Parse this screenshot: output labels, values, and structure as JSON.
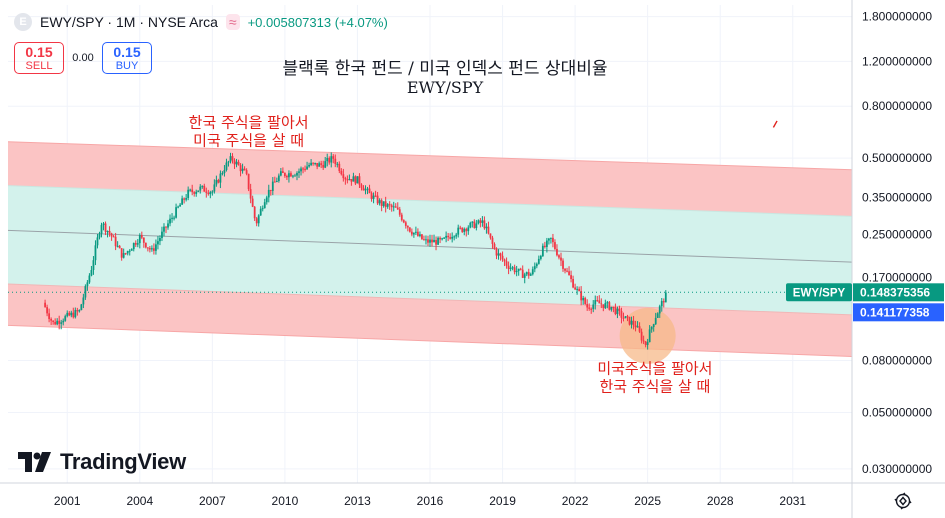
{
  "header": {
    "logo_letter": "E",
    "symbol": "EWY/SPY · 1M · NYSE Arca",
    "change_icon": "≈",
    "change": "+0.005807313 (+4.07%)"
  },
  "trade": {
    "sell_price": "0.15",
    "sell_label": "SELL",
    "spread": "0.00",
    "buy_price": "0.15",
    "buy_label": "BUY"
  },
  "brand": {
    "name": "TradingView",
    "icon": "tradingview-logo-icon"
  },
  "colors": {
    "up": "#089981",
    "down": "#f23645",
    "channel_red": "#fbc4c4",
    "channel_teal": "#d3f2ec",
    "annotation": "#e0201b",
    "highlight": "#f7b98a"
  },
  "chart_data": {
    "type": "candlestick",
    "title_line1": "블랙록 한국 펀드 / 미국 인덱스 펀드 상대비율",
    "title_line2": "EWY/SPY",
    "annotations": [
      {
        "line1": "한국 주식을 팔아서",
        "line2": "미국 주식을 살 때",
        "x": 2008.5,
        "y": 0.66
      },
      {
        "line1": "미국주식을 팔아서",
        "line2": "한국 주식을 살 때",
        "x": 2025.3,
        "y": 0.071
      }
    ],
    "x_ticks": [
      "2001",
      "2004",
      "2007",
      "2010",
      "2013",
      "2016",
      "2019",
      "2022",
      "2025",
      "2028",
      "2031"
    ],
    "x_tick_values": [
      2001,
      2004,
      2007,
      2010,
      2013,
      2016,
      2019,
      2022,
      2025,
      2028,
      2031
    ],
    "xlim": [
      1998.55,
      2033.45
    ],
    "y_scale": "log",
    "ylim": [
      0.0264,
      2.0
    ],
    "y_ticks": [
      "1.800000000",
      "1.200000000",
      "0.800000000",
      "0.500000000",
      "0.350000000",
      "0.250000000",
      "0.170000000",
      "0.080000000",
      "0.050000000",
      "0.030000000"
    ],
    "y_tick_values": [
      1.8,
      1.2,
      0.8,
      0.5,
      0.35,
      0.25,
      0.17,
      0.08,
      0.05,
      0.03
    ],
    "last_price_label": "EWY/SPY",
    "last_price": "0.148375356",
    "second_price": "0.141177358",
    "channel": {
      "x": [
        1998.55,
        2033.45
      ],
      "upper": [
        0.58,
        0.45
      ],
      "upper_mid": [
        0.39,
        0.295
      ],
      "center": [
        0.26,
        0.195
      ],
      "lower_mid": [
        0.16,
        0.121
      ],
      "lower": [
        0.11,
        0.083
      ]
    },
    "highlight": {
      "x": 2025.0,
      "y": 0.1
    },
    "series_anchors": {
      "x": [
        2000.0,
        2000.4,
        2000.9,
        2001.5,
        2002.0,
        2002.4,
        2002.8,
        2003.3,
        2004.0,
        2004.5,
        2005.0,
        2005.5,
        2006.0,
        2006.5,
        2007.0,
        2007.5,
        2007.8,
        2008.4,
        2008.8,
        2009.2,
        2009.8,
        2010.5,
        2011.0,
        2011.5,
        2012.0,
        2012.5,
        2013.0,
        2013.5,
        2014.0,
        2014.6,
        2015.2,
        2015.8,
        2016.5,
        2017.0,
        2017.6,
        2018.2,
        2018.7,
        2019.2,
        2019.8,
        2020.2,
        2020.6,
        2021.0,
        2021.5,
        2022.0,
        2022.5,
        2022.9,
        2023.5,
        2024.0,
        2024.5,
        2024.9,
        2025.3,
        2025.8
      ],
      "y": [
        0.135,
        0.112,
        0.118,
        0.125,
        0.185,
        0.28,
        0.25,
        0.205,
        0.245,
        0.215,
        0.26,
        0.31,
        0.365,
        0.38,
        0.37,
        0.46,
        0.5,
        0.43,
        0.275,
        0.355,
        0.43,
        0.44,
        0.47,
        0.47,
        0.5,
        0.42,
        0.41,
        0.36,
        0.33,
        0.315,
        0.26,
        0.235,
        0.235,
        0.255,
        0.27,
        0.28,
        0.215,
        0.19,
        0.175,
        0.175,
        0.215,
        0.24,
        0.19,
        0.155,
        0.13,
        0.135,
        0.13,
        0.118,
        0.11,
        0.092,
        0.118,
        0.148
      ]
    }
  }
}
